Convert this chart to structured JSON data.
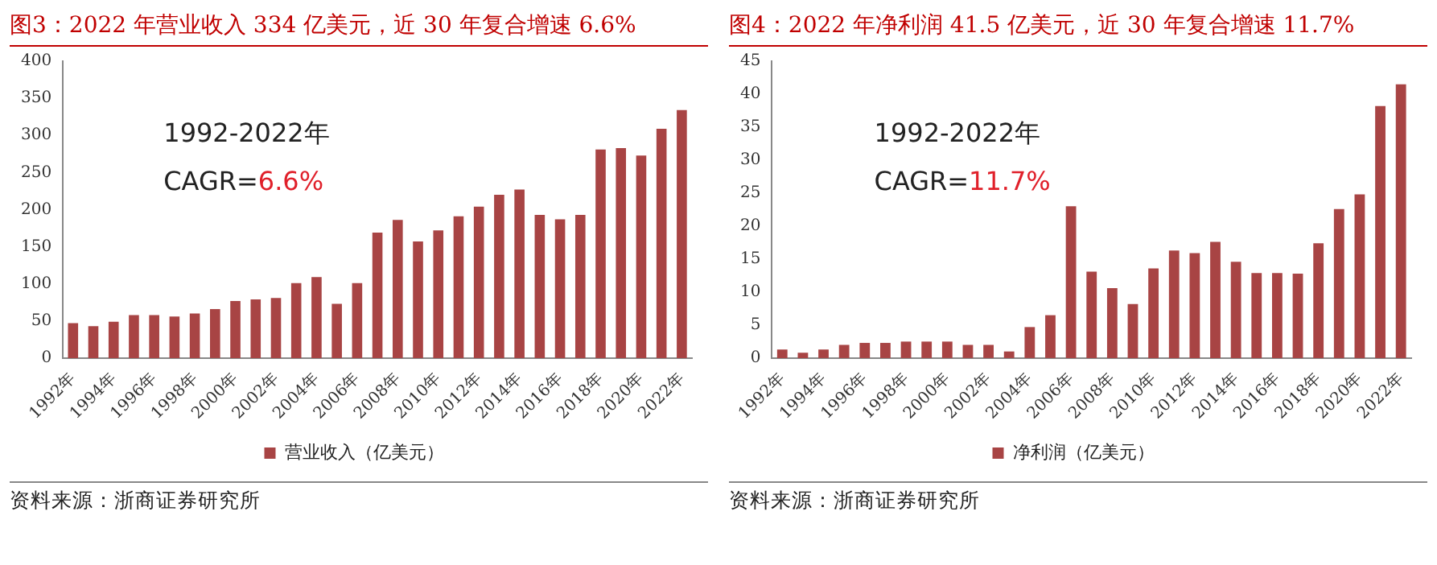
{
  "chart_data": [
    {
      "type": "bar",
      "title": "图3：2022 年营业收入 334 亿美元，近 30 年复合增速 6.6%",
      "categories": [
        "1992年",
        null,
        "1994年",
        null,
        "1996年",
        null,
        "1998年",
        null,
        "2000年",
        null,
        "2002年",
        null,
        "2004年",
        null,
        "2006年",
        null,
        "2008年",
        null,
        "2010年",
        null,
        "2012年",
        null,
        "2014年",
        null,
        "2016年",
        null,
        "2018年",
        null,
        "2020年",
        null,
        "2022年"
      ],
      "series": [
        {
          "name": "营业收入（亿美元）",
          "color": "#a84444",
          "values": [
            47,
            43,
            49,
            58,
            58,
            56,
            60,
            66,
            77,
            79,
            81,
            101,
            109,
            73,
            101,
            169,
            186,
            157,
            172,
            191,
            204,
            220,
            227,
            193,
            187,
            193,
            281,
            283,
            273,
            309,
            334
          ]
        }
      ],
      "ylim": [
        0,
        400
      ],
      "yticks": [
        0,
        50,
        100,
        150,
        200,
        250,
        300,
        350,
        400
      ],
      "grid": false,
      "legend": "bottom",
      "annotations": [
        "1992-2022年",
        "CAGR=6.6%",
        "资料来源：浙商证券研究所"
      ]
    },
    {
      "type": "bar",
      "title": "图4：2022 年净利润 41.5 亿美元，近 30 年复合增速 11.7%",
      "categories": [
        "1992年",
        null,
        "1994年",
        null,
        "1996年",
        null,
        "1998年",
        null,
        "2000年",
        null,
        "2002年",
        null,
        "2004年",
        null,
        "2006年",
        null,
        "2008年",
        null,
        "2010年",
        null,
        "2012年",
        null,
        "2014年",
        null,
        "2016年",
        null,
        "2018年",
        null,
        "2020年",
        null,
        "2022年"
      ],
      "series": [
        {
          "name": "净利润（亿美元）",
          "color": "#a84444",
          "values": [
            1.3,
            0.8,
            1.3,
            2.0,
            2.3,
            2.3,
            2.5,
            2.5,
            2.5,
            2.0,
            2.0,
            1.0,
            4.7,
            6.5,
            23,
            13.1,
            10.6,
            8.2,
            13.6,
            16.3,
            15.9,
            17.6,
            14.6,
            12.9,
            12.9,
            12.8,
            17.4,
            22.6,
            24.8,
            38.2,
            41.5
          ]
        }
      ],
      "ylim": [
        0,
        45
      ],
      "yticks": [
        0,
        5,
        10,
        15,
        20,
        25,
        30,
        35,
        40,
        45
      ],
      "grid": false,
      "legend": "bottom",
      "annotations": [
        "1992-2022年",
        "CAGR=11.7%",
        "资料来源：浙商证券研究所"
      ]
    }
  ]
}
